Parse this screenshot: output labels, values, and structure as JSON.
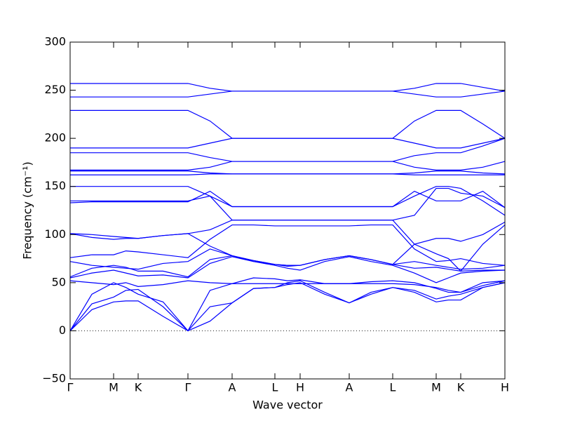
{
  "chart_data": {
    "type": "line",
    "xlabel": "Wave vector",
    "ylabel": "Frequency (cm⁻¹)",
    "x": [
      0,
      0.31,
      0.62,
      0.795,
      0.97,
      1.325,
      1.68,
      1.995,
      2.31,
      2.615,
      2.92,
      3.1,
      3.28,
      3.63,
      3.98,
      4.29,
      4.6,
      4.91,
      5.22,
      5.395,
      5.57,
      5.885,
      6.2
    ],
    "xlim": [
      0,
      6.2
    ],
    "xticks": [
      {
        "value": 0,
        "label": "Γ"
      },
      {
        "value": 0.62,
        "label": "M"
      },
      {
        "value": 0.97,
        "label": "K"
      },
      {
        "value": 1.68,
        "label": "Γ"
      },
      {
        "value": 2.31,
        "label": "A"
      },
      {
        "value": 2.92,
        "label": "L"
      },
      {
        "value": 3.28,
        "label": "H"
      },
      {
        "value": 3.98,
        "label": "A"
      },
      {
        "value": 4.6,
        "label": "L"
      },
      {
        "value": 5.22,
        "label": "M"
      },
      {
        "value": 5.57,
        "label": "K"
      },
      {
        "value": 6.2,
        "label": "H"
      }
    ],
    "ylim": [
      -50,
      300
    ],
    "yticks": [
      {
        "value": -50,
        "label": "−50"
      },
      0,
      50,
      100,
      150,
      200,
      250,
      300
    ],
    "hlines": [
      0
    ],
    "series": [
      {
        "color": "#0000ff",
        "values": [
          0,
          22,
          30,
          31,
          31,
          15,
          0,
          10,
          29,
          44,
          45,
          48,
          50,
          38,
          29,
          38,
          45,
          40,
          30,
          32,
          32,
          45,
          50
        ]
      },
      {
        "color": "#0000ff",
        "values": [
          0,
          28,
          35,
          42,
          43,
          25,
          0,
          25,
          29,
          44,
          45,
          50,
          52,
          40,
          29,
          40,
          45,
          42,
          33,
          36,
          38,
          45,
          50
        ]
      },
      {
        "color": "#0000ff",
        "values": [
          0,
          38,
          50,
          45,
          38,
          30,
          0,
          42,
          49,
          49,
          49,
          49,
          49,
          49,
          49,
          49,
          49,
          48,
          45,
          42,
          40,
          47,
          52
        ]
      },
      {
        "color": "#0000ff",
        "values": [
          52,
          50,
          48,
          50,
          46,
          48,
          52,
          50,
          49,
          55,
          54,
          52,
          53,
          49,
          49,
          51,
          52,
          50,
          44,
          40,
          40,
          50,
          52
        ]
      },
      {
        "color": "#0000ff",
        "values": [
          55,
          60,
          63,
          60,
          57,
          58,
          55,
          70,
          77,
          72,
          68,
          65,
          63,
          72,
          77,
          72,
          68,
          60,
          50,
          55,
          60,
          62,
          63
        ]
      },
      {
        "color": "#0000ff",
        "values": [
          56,
          65,
          68,
          66,
          62,
          62,
          56,
          74,
          78,
          73,
          69,
          68,
          68,
          74,
          78,
          74,
          69,
          65,
          66,
          64,
          62,
          63,
          63
        ]
      },
      {
        "color": "#0000ff",
        "values": [
          72,
          68,
          66,
          65,
          64,
          70,
          72,
          85,
          78,
          72,
          69,
          68,
          68,
          74,
          78,
          74,
          69,
          72,
          68,
          66,
          64,
          65,
          68
        ]
      },
      {
        "color": "#0000ff",
        "values": [
          76,
          79,
          79,
          83,
          82,
          79,
          76,
          95,
          110,
          110,
          109,
          109,
          109,
          109,
          109,
          110,
          110,
          85,
          72,
          73,
          75,
          70,
          68
        ]
      },
      {
        "color": "#0000ff",
        "values": [
          101,
          97,
          95,
          96,
          96,
          99,
          101,
          88,
          78,
          73,
          69,
          67,
          68,
          74,
          78,
          74,
          69,
          90,
          96,
          96,
          93,
          100,
          113
        ]
      },
      {
        "color": "#0000ff",
        "values": [
          101,
          100,
          98,
          97,
          96,
          99,
          101,
          105,
          115,
          115,
          115,
          115,
          115,
          115,
          115,
          115,
          115,
          90,
          80,
          75,
          62,
          90,
          110
        ]
      },
      {
        "color": "#0000ff",
        "values": [
          133,
          134,
          134,
          134,
          134,
          134,
          134,
          145,
          129,
          129,
          129,
          129,
          129,
          129,
          129,
          129,
          129,
          145,
          135,
          135,
          135,
          145,
          128
        ]
      },
      {
        "color": "#0000ff",
        "values": [
          135,
          135,
          135,
          135,
          135,
          135,
          135,
          140,
          115,
          115,
          115,
          115,
          115,
          115,
          115,
          115,
          115,
          120,
          148,
          148,
          143,
          140,
          128
        ]
      },
      {
        "color": "#0000ff",
        "values": [
          150,
          150,
          150,
          150,
          150,
          150,
          150,
          140,
          129,
          129,
          129,
          129,
          129,
          129,
          129,
          129,
          129,
          140,
          150,
          150,
          148,
          135,
          120
        ]
      },
      {
        "color": "#0000ff",
        "values": [
          162,
          162,
          162,
          162,
          162,
          162,
          162,
          163,
          163,
          163,
          163,
          163,
          163,
          163,
          163,
          163,
          163,
          162,
          162,
          162,
          162,
          162,
          162
        ]
      },
      {
        "color": "#0000ff",
        "values": [
          166,
          166,
          166,
          166,
          166,
          166,
          166,
          164,
          163,
          163,
          163,
          163,
          163,
          163,
          163,
          163,
          163,
          164,
          166,
          166,
          166,
          164,
          163
        ]
      },
      {
        "color": "#0000ff",
        "values": [
          167,
          167,
          167,
          167,
          167,
          167,
          167,
          170,
          176,
          176,
          176,
          176,
          176,
          176,
          176,
          176,
          176,
          170,
          167,
          167,
          167,
          170,
          176
        ]
      },
      {
        "color": "#0000ff",
        "values": [
          185,
          185,
          185,
          185,
          185,
          185,
          185,
          180,
          176,
          176,
          176,
          176,
          176,
          176,
          176,
          176,
          176,
          182,
          185,
          185,
          185,
          192,
          200
        ]
      },
      {
        "color": "#0000ff",
        "values": [
          190,
          190,
          190,
          190,
          190,
          190,
          190,
          195,
          200,
          200,
          200,
          200,
          200,
          200,
          200,
          200,
          200,
          195,
          190,
          190,
          190,
          195,
          200
        ]
      },
      {
        "color": "#0000ff",
        "values": [
          229,
          229,
          229,
          229,
          229,
          229,
          229,
          218,
          200,
          200,
          200,
          200,
          200,
          200,
          200,
          200,
          200,
          218,
          229,
          229,
          229,
          215,
          200
        ]
      },
      {
        "color": "#0000ff",
        "values": [
          243,
          243,
          243,
          243,
          243,
          243,
          243,
          246,
          249,
          249,
          249,
          249,
          249,
          249,
          249,
          249,
          249,
          246,
          243,
          243,
          243,
          246,
          249
        ]
      },
      {
        "color": "#0000ff",
        "values": [
          257,
          257,
          257,
          257,
          257,
          257,
          257,
          252,
          249,
          249,
          249,
          249,
          249,
          249,
          249,
          249,
          249,
          252,
          257,
          257,
          257,
          253,
          249
        ]
      }
    ]
  }
}
